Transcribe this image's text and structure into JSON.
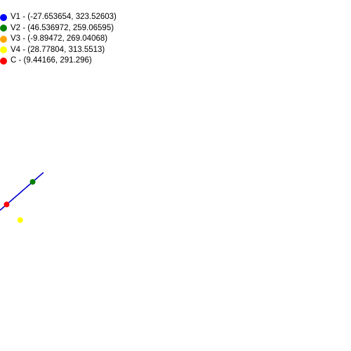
{
  "legend": [
    {
      "label": "V1 - (-27.653654, 323.52603)",
      "color": "#0000ff"
    },
    {
      "label": "V2 - (46.536972, 259.06595)",
      "color": "#008000"
    },
    {
      "label": "V3 - (-9.89472, 269.04068)",
      "color": "#ffa500"
    },
    {
      "label": "V4 - (28.77804, 313.5513)",
      "color": "#ffff00"
    },
    {
      "label": "C - (9.44166, 291.296)",
      "color": "#ff0000"
    }
  ],
  "ellipse": {
    "center": [
      9.44166,
      291.296
    ],
    "color": "#0000cc"
  },
  "points": [
    {
      "name": "V1",
      "x": -27.653654,
      "y": 323.52603,
      "color": "#0000ff"
    },
    {
      "name": "V2",
      "x": 46.536972,
      "y": 259.06595,
      "color": "#008000"
    },
    {
      "name": "V3",
      "x": -9.89472,
      "y": 269.04068,
      "color": "#ffa500"
    },
    {
      "name": "V4",
      "x": 28.77804,
      "y": 313.5513,
      "color": "#ffff00"
    },
    {
      "name": "C",
      "x": 9.44166,
      "y": 291.296,
      "color": "#ff0000"
    }
  ]
}
